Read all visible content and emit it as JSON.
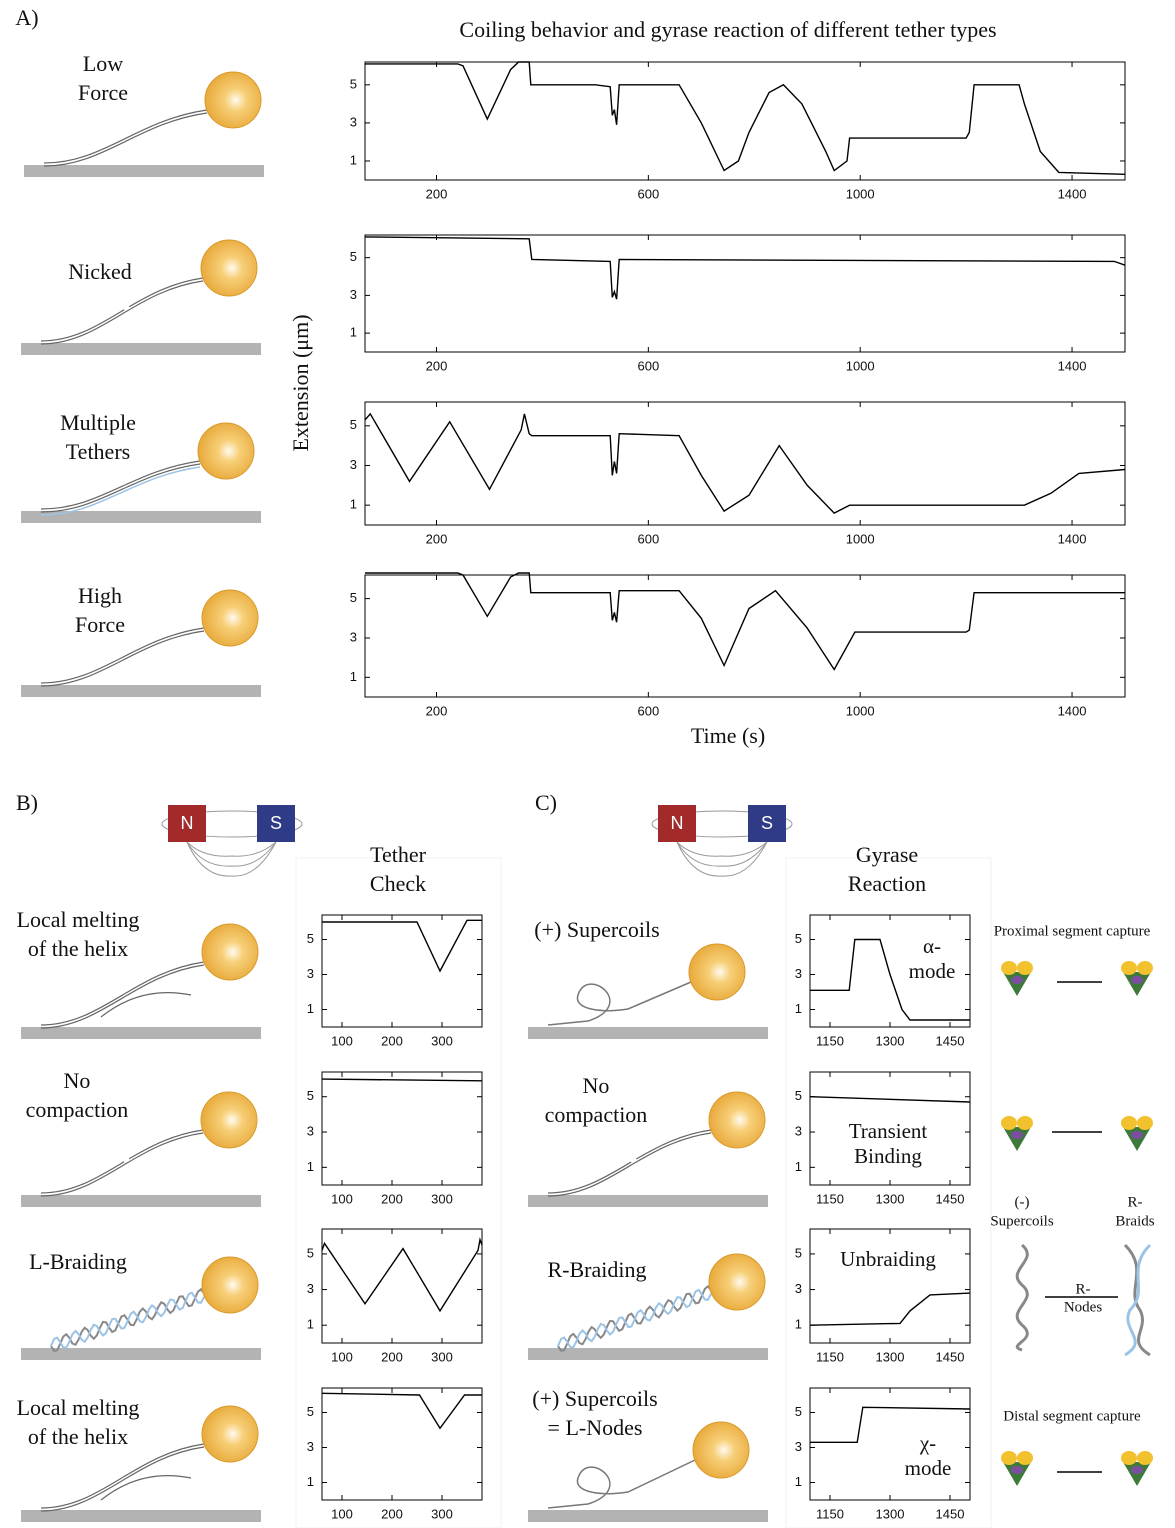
{
  "figure": {
    "panel_a": {
      "label": "A)",
      "title": "Coiling behavior and gyrase reaction of different tether types",
      "y_label": "Extension (μm)",
      "x_label": "Time (s)",
      "tethers": [
        [
          "Low",
          "Force"
        ],
        [
          "Nicked"
        ],
        [
          "Multiple",
          "Tethers"
        ],
        [
          "High",
          "Force"
        ]
      ]
    },
    "panel_b": {
      "label": "B)",
      "magnet": [
        "N",
        "S"
      ],
      "title": [
        "Tether",
        "Check"
      ],
      "tethers": [
        [
          "Local melting",
          "of the helix"
        ],
        [
          "No",
          "compaction"
        ],
        [
          "L-Braiding"
        ],
        [
          "Local melting",
          "of the helix"
        ]
      ]
    },
    "panel_c": {
      "label": "C)",
      "magnet": [
        "N",
        "S"
      ],
      "title": [
        "Gyrase",
        "Reaction"
      ],
      "tethers": [
        [
          "(+) Supercoils"
        ],
        [
          "No",
          "compaction"
        ],
        [
          "R-Braiding"
        ],
        [
          "(+) Supercoils",
          "= L-Nodes"
        ]
      ],
      "mechanisms": {
        "proximal": "Proximal segment capture",
        "neg_supercoils": [
          "(-)",
          "Supercoils"
        ],
        "r_braids": [
          "R-",
          "Braids"
        ],
        "r_nodes": [
          "R-",
          "Nodes"
        ],
        "distal": "Distal segment capture"
      }
    }
  },
  "chart_data": [
    {
      "type": "line",
      "color": "#000000",
      "xlim": [
        65,
        1500
      ],
      "ylim": [
        0,
        6.2
      ],
      "xticks": [
        200,
        600,
        1000,
        1400
      ],
      "yticks": [
        1,
        3,
        5
      ],
      "x": [
        65,
        240,
        250,
        296,
        340,
        355,
        375,
        378,
        500,
        528,
        532,
        536,
        540,
        545,
        658,
        700,
        743,
        770,
        790,
        828,
        855,
        890,
        935,
        951,
        975,
        980,
        1200,
        1206,
        1215,
        1300,
        1310,
        1340,
        1375,
        1500
      ],
      "values": [
        6.1,
        6.1,
        6.0,
        3.2,
        5.8,
        6.2,
        6.2,
        5.0,
        5.0,
        4.9,
        3.4,
        3.7,
        2.9,
        5.0,
        5.0,
        3.0,
        0.5,
        1.0,
        2.5,
        4.6,
        5.0,
        4.0,
        1.5,
        0.5,
        1.0,
        2.2,
        2.2,
        2.5,
        5.0,
        5.0,
        4.0,
        1.5,
        0.4,
        0.3
      ]
    },
    {
      "type": "line",
      "color": "#000000",
      "xlim": [
        65,
        1500
      ],
      "ylim": [
        0,
        6.2
      ],
      "xticks": [
        200,
        600,
        1000,
        1400
      ],
      "yticks": [
        1,
        3,
        5
      ],
      "x": [
        65,
        375,
        380,
        528,
        532,
        536,
        540,
        545,
        1480,
        1500
      ],
      "values": [
        6.1,
        6.0,
        4.9,
        4.8,
        2.9,
        3.2,
        2.8,
        4.9,
        4.8,
        4.6
      ]
    },
    {
      "type": "line",
      "color": "#000000",
      "xlim": [
        65,
        1500
      ],
      "ylim": [
        0,
        6.2
      ],
      "xticks": [
        200,
        600,
        1000,
        1400
      ],
      "yticks": [
        1,
        3,
        5
      ],
      "x": [
        65,
        75,
        149,
        225,
        300,
        360,
        366,
        375,
        380,
        528,
        532,
        536,
        540,
        545,
        658,
        700,
        743,
        790,
        847,
        900,
        951,
        980,
        1310,
        1360,
        1413,
        1500
      ],
      "values": [
        5.3,
        5.6,
        2.2,
        5.2,
        1.8,
        4.8,
        5.6,
        4.6,
        4.5,
        4.5,
        2.5,
        3.2,
        2.6,
        4.6,
        4.5,
        2.5,
        0.7,
        1.5,
        4.0,
        2.0,
        0.6,
        1.0,
        1.0,
        1.6,
        2.6,
        2.8
      ]
    },
    {
      "type": "line",
      "color": "#000000",
      "xlim": [
        65,
        1500
      ],
      "ylim": [
        0,
        6.2
      ],
      "xticks": [
        200,
        600,
        1000,
        1400
      ],
      "yticks": [
        1,
        3,
        5
      ],
      "x": [
        65,
        240,
        250,
        296,
        340,
        355,
        375,
        378,
        528,
        532,
        536,
        540,
        545,
        658,
        700,
        743,
        790,
        840,
        900,
        951,
        990,
        1200,
        1206,
        1215,
        1500
      ],
      "values": [
        6.3,
        6.3,
        6.2,
        4.1,
        6.1,
        6.3,
        6.3,
        5.3,
        5.3,
        3.9,
        4.3,
        3.8,
        5.4,
        5.4,
        4.0,
        1.6,
        4.5,
        5.4,
        3.5,
        1.4,
        3.3,
        3.3,
        3.4,
        5.3,
        5.3
      ]
    },
    {
      "type": "line",
      "color": "#000000",
      "xlim": [
        60,
        380
      ],
      "ylim": [
        0,
        6.4
      ],
      "xticks": [
        100,
        200,
        300
      ],
      "yticks": [
        1,
        3,
        5
      ],
      "x": [
        60,
        250,
        296,
        350,
        380
      ],
      "values": [
        6.0,
        6.0,
        3.2,
        6.1,
        6.1
      ]
    },
    {
      "type": "line",
      "color": "#000000",
      "xlim": [
        60,
        380
      ],
      "ylim": [
        0,
        6.4
      ],
      "xticks": [
        100,
        200,
        300
      ],
      "yticks": [
        1,
        3,
        5
      ],
      "x": [
        60,
        380
      ],
      "values": [
        6.0,
        5.9
      ]
    },
    {
      "type": "line",
      "color": "#000000",
      "xlim": [
        60,
        380
      ],
      "ylim": [
        0,
        6.4
      ],
      "xticks": [
        100,
        200,
        300
      ],
      "yticks": [
        1,
        3,
        5
      ],
      "x": [
        60,
        65,
        146,
        222,
        296,
        372,
        376,
        380
      ],
      "values": [
        5.2,
        5.6,
        2.2,
        5.3,
        1.8,
        5.2,
        5.8,
        5.5
      ]
    },
    {
      "type": "line",
      "color": "#000000",
      "xlim": [
        60,
        380
      ],
      "ylim": [
        0,
        6.4
      ],
      "xticks": [
        100,
        200,
        300
      ],
      "yticks": [
        1,
        3,
        5
      ],
      "x": [
        60,
        255,
        296,
        345,
        380
      ],
      "values": [
        6.1,
        6.0,
        4.1,
        6.0,
        6.0
      ]
    },
    {
      "type": "line",
      "color": "#000000",
      "xlim": [
        1100,
        1500
      ],
      "ylim": [
        0,
        6.4
      ],
      "xticks": [
        1150,
        1300,
        1450
      ],
      "yticks": [
        1,
        3,
        5
      ],
      "annotation": [
        "α-",
        "mode"
      ],
      "x": [
        1100,
        1198,
        1212,
        1275,
        1300,
        1330,
        1350,
        1500
      ],
      "values": [
        2.1,
        2.1,
        5.0,
        5.0,
        3.0,
        1.0,
        0.4,
        0.4
      ]
    },
    {
      "type": "line",
      "color": "#000000",
      "xlim": [
        1100,
        1500
      ],
      "ylim": [
        0,
        6.4
      ],
      "xticks": [
        1150,
        1300,
        1450
      ],
      "yticks": [
        1,
        3,
        5
      ],
      "annotation": [
        "Transient",
        "Binding"
      ],
      "x": [
        1100,
        1500
      ],
      "values": [
        5.0,
        4.7
      ]
    },
    {
      "type": "line",
      "color": "#000000",
      "xlim": [
        1100,
        1500
      ],
      "ylim": [
        0,
        6.4
      ],
      "xticks": [
        1150,
        1300,
        1450
      ],
      "yticks": [
        1,
        3,
        5
      ],
      "annotation": [
        "Unbraiding"
      ],
      "x": [
        1100,
        1325,
        1350,
        1400,
        1500
      ],
      "values": [
        1.0,
        1.1,
        1.8,
        2.7,
        2.8
      ]
    },
    {
      "type": "line",
      "color": "#000000",
      "xlim": [
        1100,
        1500
      ],
      "ylim": [
        0,
        6.4
      ],
      "xticks": [
        1150,
        1300,
        1450
      ],
      "yticks": [
        1,
        3,
        5
      ],
      "annotation": [
        "χ-",
        "mode"
      ],
      "x": [
        1100,
        1218,
        1232,
        1500
      ],
      "values": [
        3.3,
        3.3,
        5.3,
        5.2
      ]
    }
  ]
}
